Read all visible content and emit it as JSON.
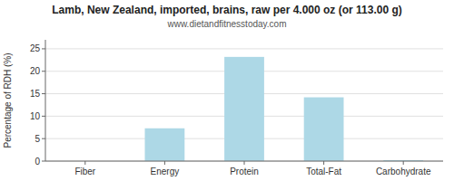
{
  "chart_data": {
    "type": "bar",
    "title": "Lamb, New Zealand, imported, brains, raw per 4.000 oz (or 113.00 g)",
    "subtitle": "www.dietandfitnesstoday.com",
    "ylabel": "Percentage of RDH (%)",
    "categories": [
      "Fiber",
      "Energy",
      "Protein",
      "Total-Fat",
      "Carbohydrate"
    ],
    "values": [
      0,
      7.3,
      23.2,
      14.2,
      0.2
    ],
    "color": "#add8e6",
    "ylim": [
      0,
      27
    ],
    "yticks": [
      0,
      5,
      10,
      15,
      20,
      25
    ],
    "grid": true
  }
}
